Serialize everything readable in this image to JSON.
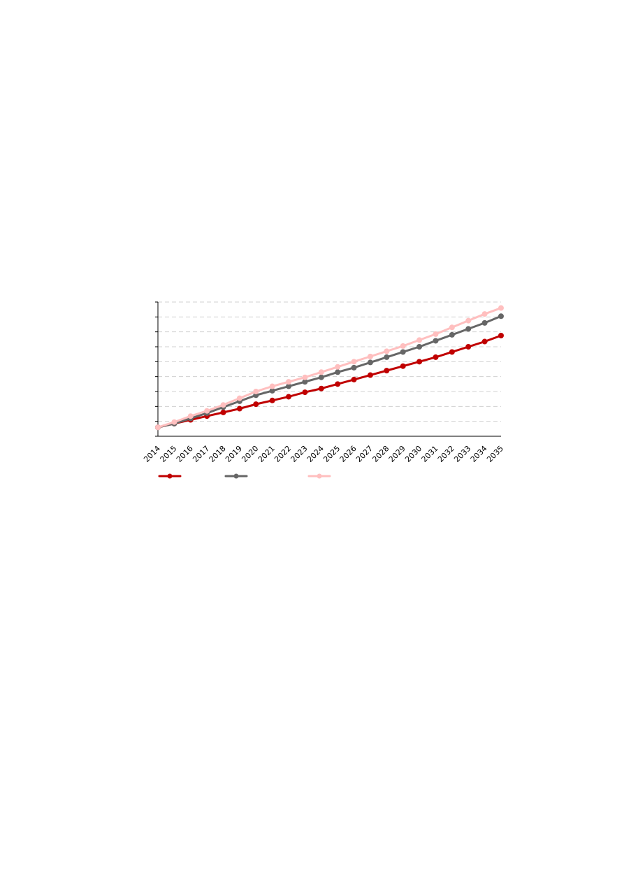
{
  "chart_data": {
    "type": "line",
    "x": [
      "2014",
      "2015",
      "2016",
      "2017",
      "2018",
      "2019",
      "2020",
      "2021",
      "2022",
      "2023",
      "2024",
      "2025",
      "2026",
      "2027",
      "2028",
      "2029",
      "2030",
      "2031",
      "2032",
      "2033",
      "2034",
      "2035"
    ],
    "ylim": [
      0,
      9
    ],
    "y_tick_count": 10,
    "grid": true,
    "legend_position": "bottom",
    "series": [
      {
        "color": "#c00000",
        "values": [
          0.6,
          0.85,
          1.1,
          1.35,
          1.6,
          1.85,
          2.15,
          2.4,
          2.65,
          2.95,
          3.2,
          3.5,
          3.8,
          4.1,
          4.4,
          4.7,
          5.0,
          5.3,
          5.65,
          6.0,
          6.35,
          6.75
        ]
      },
      {
        "color": "#666666",
        "values": [
          0.6,
          0.85,
          1.2,
          1.55,
          1.95,
          2.35,
          2.75,
          3.05,
          3.35,
          3.65,
          3.95,
          4.3,
          4.6,
          4.95,
          5.3,
          5.65,
          6.0,
          6.4,
          6.8,
          7.2,
          7.6,
          8.05
        ]
      },
      {
        "color": "#ffbfbf",
        "values": [
          0.6,
          0.95,
          1.35,
          1.7,
          2.1,
          2.55,
          3.0,
          3.35,
          3.65,
          3.95,
          4.3,
          4.65,
          5.0,
          5.35,
          5.7,
          6.05,
          6.45,
          6.85,
          7.3,
          7.75,
          8.2,
          8.6
        ]
      }
    ]
  }
}
